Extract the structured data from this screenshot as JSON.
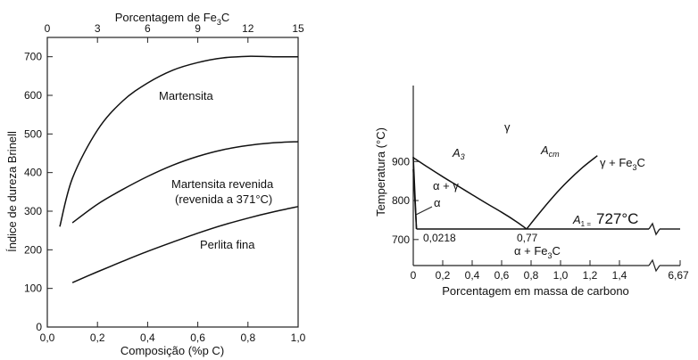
{
  "chart_data": [
    {
      "type": "line",
      "xlabel": "Composição (%p C)",
      "ylabel": "Índice de dureza Brinell",
      "top_axis_label": "Porcentagem de Fe",
      "top_axis_label_sub": "3",
      "top_axis_label_end": "C",
      "xlim": [
        0,
        1.0
      ],
      "ylim": [
        0,
        750
      ],
      "x_ticks": [
        0.0,
        0.2,
        0.4,
        0.6,
        0.8,
        1.0
      ],
      "x_tick_labels": [
        "0,0",
        "0,2",
        "0,4",
        "0,6",
        "0,8",
        "1,0"
      ],
      "y_ticks": [
        0,
        100,
        200,
        300,
        400,
        500,
        600,
        700
      ],
      "y_tick_labels": [
        "0",
        "100",
        "200",
        "300",
        "400",
        "500",
        "600",
        "700"
      ],
      "top_ticks": [
        0,
        3,
        6,
        9,
        12,
        15
      ],
      "top_tick_labels": [
        "0",
        "3",
        "6",
        "9",
        "12",
        "15"
      ],
      "series": [
        {
          "name": "Martensita",
          "x": [
            0.05,
            0.1,
            0.2,
            0.3,
            0.4,
            0.5,
            0.6,
            0.7,
            0.8,
            0.9,
            1.0
          ],
          "y": [
            260,
            385,
            510,
            585,
            632,
            665,
            685,
            697,
            701,
            700,
            700
          ]
        },
        {
          "name": "Martensita revenida",
          "x": [
            0.1,
            0.2,
            0.3,
            0.4,
            0.5,
            0.6,
            0.7,
            0.8,
            0.9,
            1.0
          ],
          "y": [
            270,
            318,
            356,
            390,
            419,
            442,
            459,
            470,
            477,
            480
          ]
        },
        {
          "name": "Perlita fina",
          "x": [
            0.1,
            0.2,
            0.3,
            0.4,
            0.5,
            0.6,
            0.7,
            0.8,
            0.9,
            1.0
          ],
          "y": [
            115,
            143,
            170,
            196,
            220,
            243,
            264,
            282,
            298,
            312
          ]
        }
      ],
      "annotations": {
        "martensita": "Martensita",
        "martensita_revenida": "Martensita revenida",
        "revenida_note": "(revenida a 371°C)",
        "perlita": "Perlita fina"
      }
    },
    {
      "type": "line",
      "xlabel": "Porcentagem em massa de carbono",
      "ylabel": "Temperatura (°C)",
      "xlim": [
        0,
        1.65
      ],
      "ylim": [
        685,
        925
      ],
      "x_ticks": [
        0,
        0.2,
        0.4,
        0.6,
        0.8,
        1.0,
        1.2,
        1.4
      ],
      "x_tick_labels": [
        "0",
        "0,2",
        "0,4",
        "0,6",
        "0,8",
        "1,0",
        "1,2",
        "1,4"
      ],
      "x_break_label": "6,67",
      "y_ticks": [
        700,
        800,
        900
      ],
      "y_tick_labels": [
        "700",
        "800",
        "900"
      ],
      "series": [
        {
          "name": "A3",
          "x": [
            0.0,
            0.1,
            0.2,
            0.3,
            0.4,
            0.5,
            0.6,
            0.7,
            0.77
          ],
          "y": [
            910,
            885,
            861,
            838,
            815,
            792,
            770,
            746,
            727
          ]
        },
        {
          "name": "Acm",
          "x": [
            0.77,
            0.85,
            0.95,
            1.05,
            1.15,
            1.25
          ],
          "y": [
            727,
            765,
            810,
            850,
            885,
            915
          ]
        },
        {
          "name": "alpha_solvus_upper",
          "x": [
            0.0,
            0.0218
          ],
          "y": [
            912,
            727
          ]
        },
        {
          "name": "alpha_solvus_lower",
          "x": [
            0.0,
            0.0218
          ],
          "y": [
            880,
            727
          ]
        },
        {
          "name": "A1",
          "x": [
            0.0218,
            1.65
          ],
          "y": [
            727,
            727
          ]
        }
      ],
      "annotations": {
        "gamma": "γ",
        "a3": "A",
        "a3_sub": "3",
        "acm": "A",
        "acm_sub": "cm",
        "gamma_fe3c": "γ + Fe",
        "gamma_fe3c_sub": "3",
        "gamma_fe3c_end": "C",
        "alpha_gamma": "α + γ",
        "alpha": "α",
        "a1": "A",
        "a1_sub": "1 =",
        "a1_temp": "727°C",
        "eutectoid_ferrite": "0,0218",
        "eutectoid": "0,77",
        "alpha_fe3c": "α + Fe",
        "alpha_fe3c_sub": "3",
        "alpha_fe3c_end": "C"
      }
    }
  ]
}
